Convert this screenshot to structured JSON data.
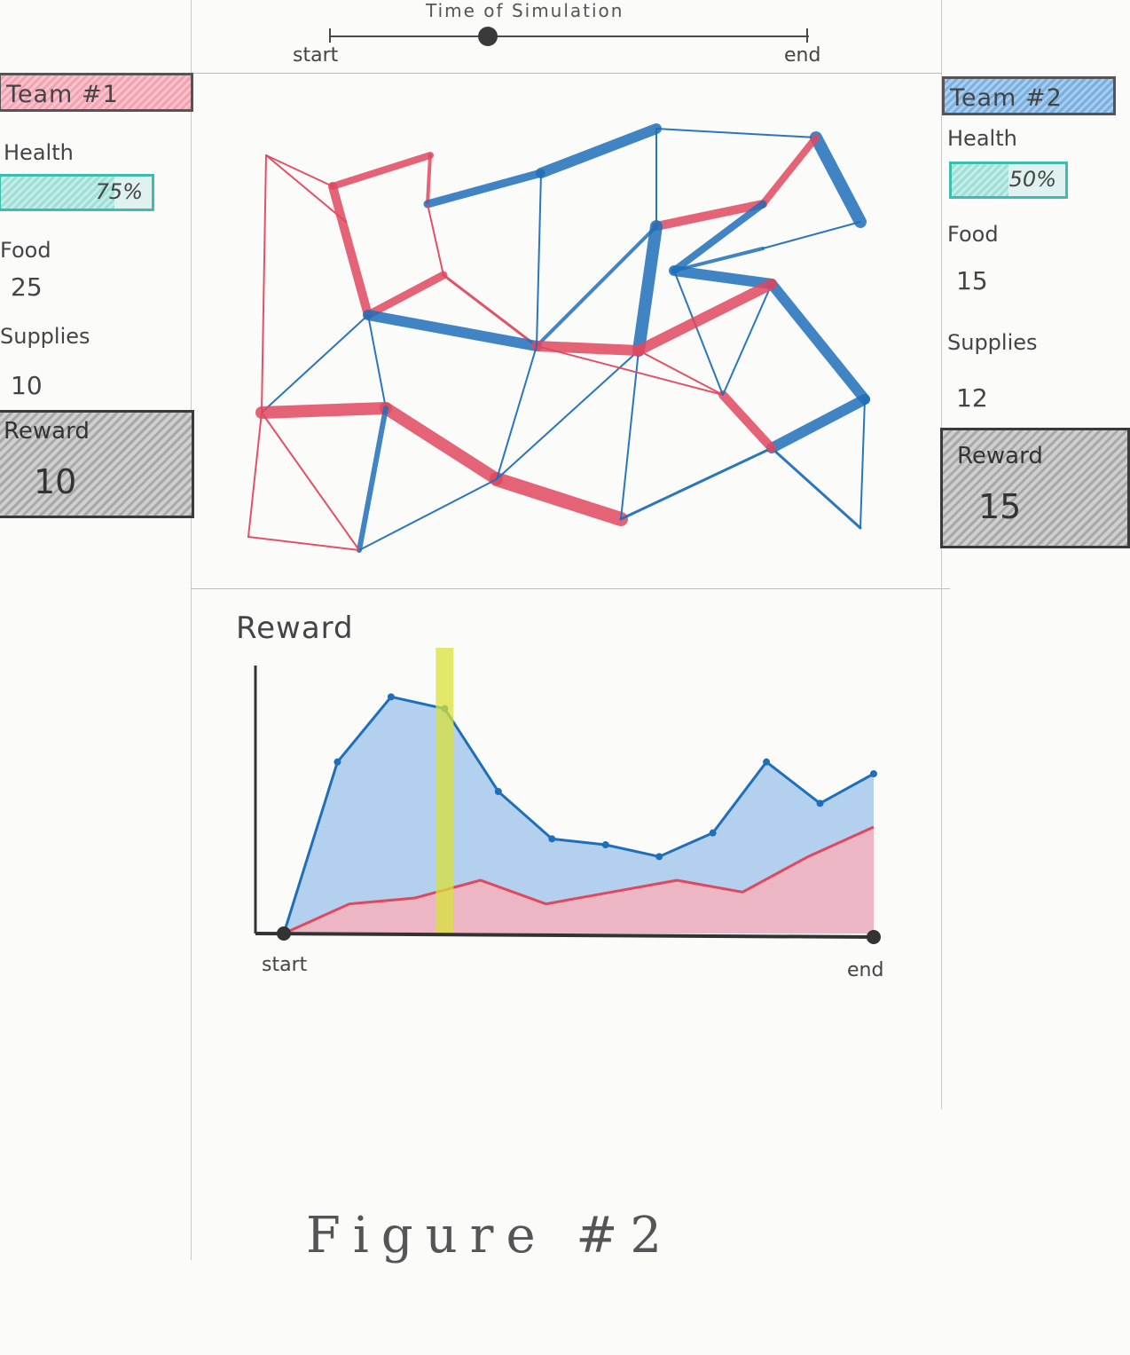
{
  "slider": {
    "title": "Time of Simulation",
    "start_label": "start",
    "end_label": "end",
    "position": 0.33
  },
  "team1": {
    "title": "Team #1",
    "health_label": "Health",
    "health_value": "75%",
    "health_fraction": 0.75,
    "food_label": "Food",
    "food_value": "25",
    "supplies_label": "Supplies",
    "supplies_value": "10",
    "reward_label": "Reward",
    "reward_value": "10"
  },
  "team2": {
    "title": "Team #2",
    "health_label": "Health",
    "health_value": "50%",
    "health_fraction": 0.5,
    "food_label": "Food",
    "food_value": "15",
    "supplies_label": "Supplies",
    "supplies_value": "12",
    "reward_label": "Reward",
    "reward_value": "15"
  },
  "colors": {
    "team1": "#e0485e",
    "team2": "#1f6fb8",
    "health": "#3cbdae",
    "highlight": "#d8e23a"
  },
  "chart_data": {
    "type": "area",
    "title": "Reward",
    "xlabel_start": "start",
    "xlabel_end": "end",
    "x": [
      0,
      1,
      2,
      3,
      4,
      5,
      6,
      7,
      8,
      9,
      10,
      11,
      12,
      13,
      14
    ],
    "series": [
      {
        "values": [
          0,
          29,
          40,
          38,
          24,
          16,
          15,
          13,
          17,
          29,
          22,
          27,
          0,
          0,
          0
        ]
      },
      {
        "values": [
          0,
          5,
          6,
          9,
          5,
          7,
          9,
          7,
          13,
          18,
          0,
          0,
          0,
          0,
          0
        ]
      }
    ],
    "highlight_x": 3,
    "ylim": [
      0,
      45
    ]
  },
  "caption": "Figure #2"
}
